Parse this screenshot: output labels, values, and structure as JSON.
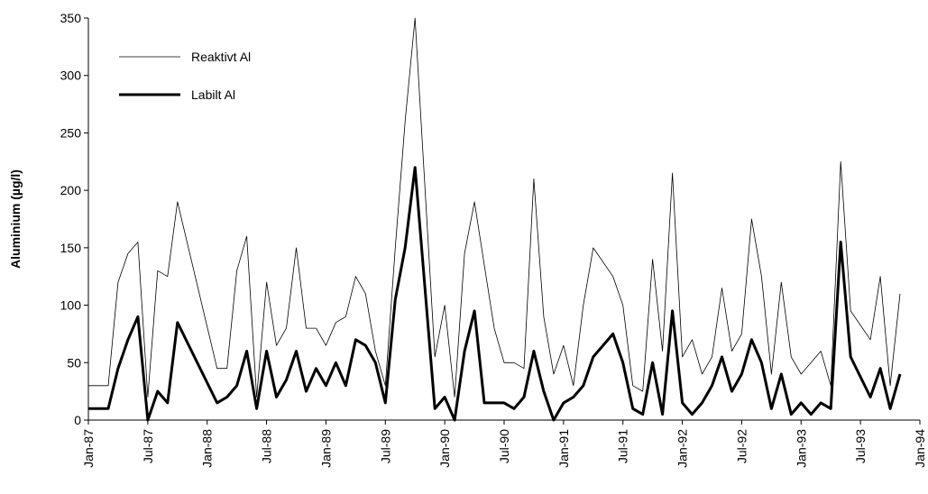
{
  "chart_data": {
    "type": "line",
    "y_label": "Aluminium (µg/l)",
    "x": [
      "1987-01",
      "1987-03",
      "1987-04",
      "1987-05",
      "1987-06",
      "1987-07",
      "1987-08",
      "1987-09",
      "1987-10",
      "1988-02",
      "1988-03",
      "1988-04",
      "1988-05",
      "1988-06",
      "1988-07",
      "1988-08",
      "1988-09",
      "1988-10",
      "1988-11",
      "1988-12",
      "1989-01",
      "1989-02",
      "1989-03",
      "1989-04",
      "1989-05",
      "1989-06",
      "1989-07",
      "1989-08",
      "1989-09",
      "1989-10",
      "1989-12",
      "1990-01",
      "1990-02",
      "1990-03",
      "1990-04",
      "1990-05",
      "1990-06",
      "1990-07",
      "1990-08",
      "1990-09",
      "1990-10",
      "1990-11",
      "1990-12",
      "1991-01",
      "1991-02",
      "1991-03",
      "1991-04",
      "1991-06",
      "1991-07",
      "1991-08",
      "1991-09",
      "1991-10",
      "1991-11",
      "1991-12",
      "1992-01",
      "1992-02",
      "1992-03",
      "1992-04",
      "1992-05",
      "1992-06",
      "1992-07",
      "1992-08",
      "1992-09",
      "1992-10",
      "1992-11",
      "1992-12",
      "1993-01",
      "1993-02",
      "1993-03",
      "1993-04",
      "1993-05",
      "1993-06",
      "1993-08",
      "1993-09",
      "1993-10",
      "1993-11"
    ],
    "series": [
      {
        "name": "Reaktivt Al",
        "color": "#000000",
        "width": 0.8,
        "values": [
          30,
          30,
          120,
          145,
          155,
          20,
          130,
          125,
          190,
          45,
          45,
          130,
          160,
          20,
          120,
          65,
          80,
          150,
          80,
          80,
          65,
          85,
          90,
          125,
          110,
          60,
          30,
          150,
          260,
          350,
          55,
          100,
          20,
          145,
          190,
          135,
          80,
          50,
          50,
          45,
          210,
          90,
          40,
          65,
          30,
          100,
          150,
          125,
          100,
          30,
          25,
          140,
          60,
          215,
          55,
          70,
          40,
          55,
          115,
          60,
          75,
          175,
          125,
          40,
          120,
          55,
          40,
          50,
          60,
          30,
          225,
          95,
          70,
          125,
          30,
          110
        ]
      },
      {
        "name": "Labilt Al",
        "color": "#000000",
        "width": 3,
        "values": [
          10,
          10,
          45,
          70,
          90,
          0,
          25,
          15,
          85,
          15,
          20,
          30,
          60,
          10,
          60,
          20,
          35,
          60,
          25,
          45,
          30,
          50,
          30,
          70,
          65,
          50,
          15,
          105,
          150,
          220,
          10,
          20,
          0,
          60,
          95,
          15,
          15,
          15,
          10,
          20,
          60,
          25,
          0,
          15,
          20,
          30,
          55,
          75,
          50,
          10,
          5,
          50,
          5,
          95,
          15,
          5,
          15,
          30,
          55,
          25,
          40,
          70,
          50,
          10,
          40,
          5,
          15,
          5,
          15,
          10,
          155,
          55,
          20,
          45,
          10,
          40
        ]
      }
    ],
    "xlim": [
      "1987-01",
      "1994-01"
    ],
    "xticks": [
      {
        "value": "1987-01",
        "label": "Jan-87"
      },
      {
        "value": "1987-07",
        "label": "Jul-87"
      },
      {
        "value": "1988-01",
        "label": "Jan-88"
      },
      {
        "value": "1988-07",
        "label": "Jul-88"
      },
      {
        "value": "1989-01",
        "label": "Jan-89"
      },
      {
        "value": "1989-07",
        "label": "Jul-89"
      },
      {
        "value": "1990-01",
        "label": "Jan-90"
      },
      {
        "value": "1990-07",
        "label": "Jul-90"
      },
      {
        "value": "1991-01",
        "label": "Jan-91"
      },
      {
        "value": "1991-07",
        "label": "Jul-91"
      },
      {
        "value": "1992-01",
        "label": "Jan-92"
      },
      {
        "value": "1992-07",
        "label": "Jul-92"
      },
      {
        "value": "1993-01",
        "label": "Jan-93"
      },
      {
        "value": "1993-07",
        "label": "Jul-93"
      },
      {
        "value": "1994-01",
        "label": "Jan-94"
      }
    ],
    "ylim": [
      0,
      350
    ],
    "yticks": [
      0,
      50,
      100,
      150,
      200,
      250,
      300,
      350
    ],
    "grid": false,
    "legend": "upper-left"
  }
}
